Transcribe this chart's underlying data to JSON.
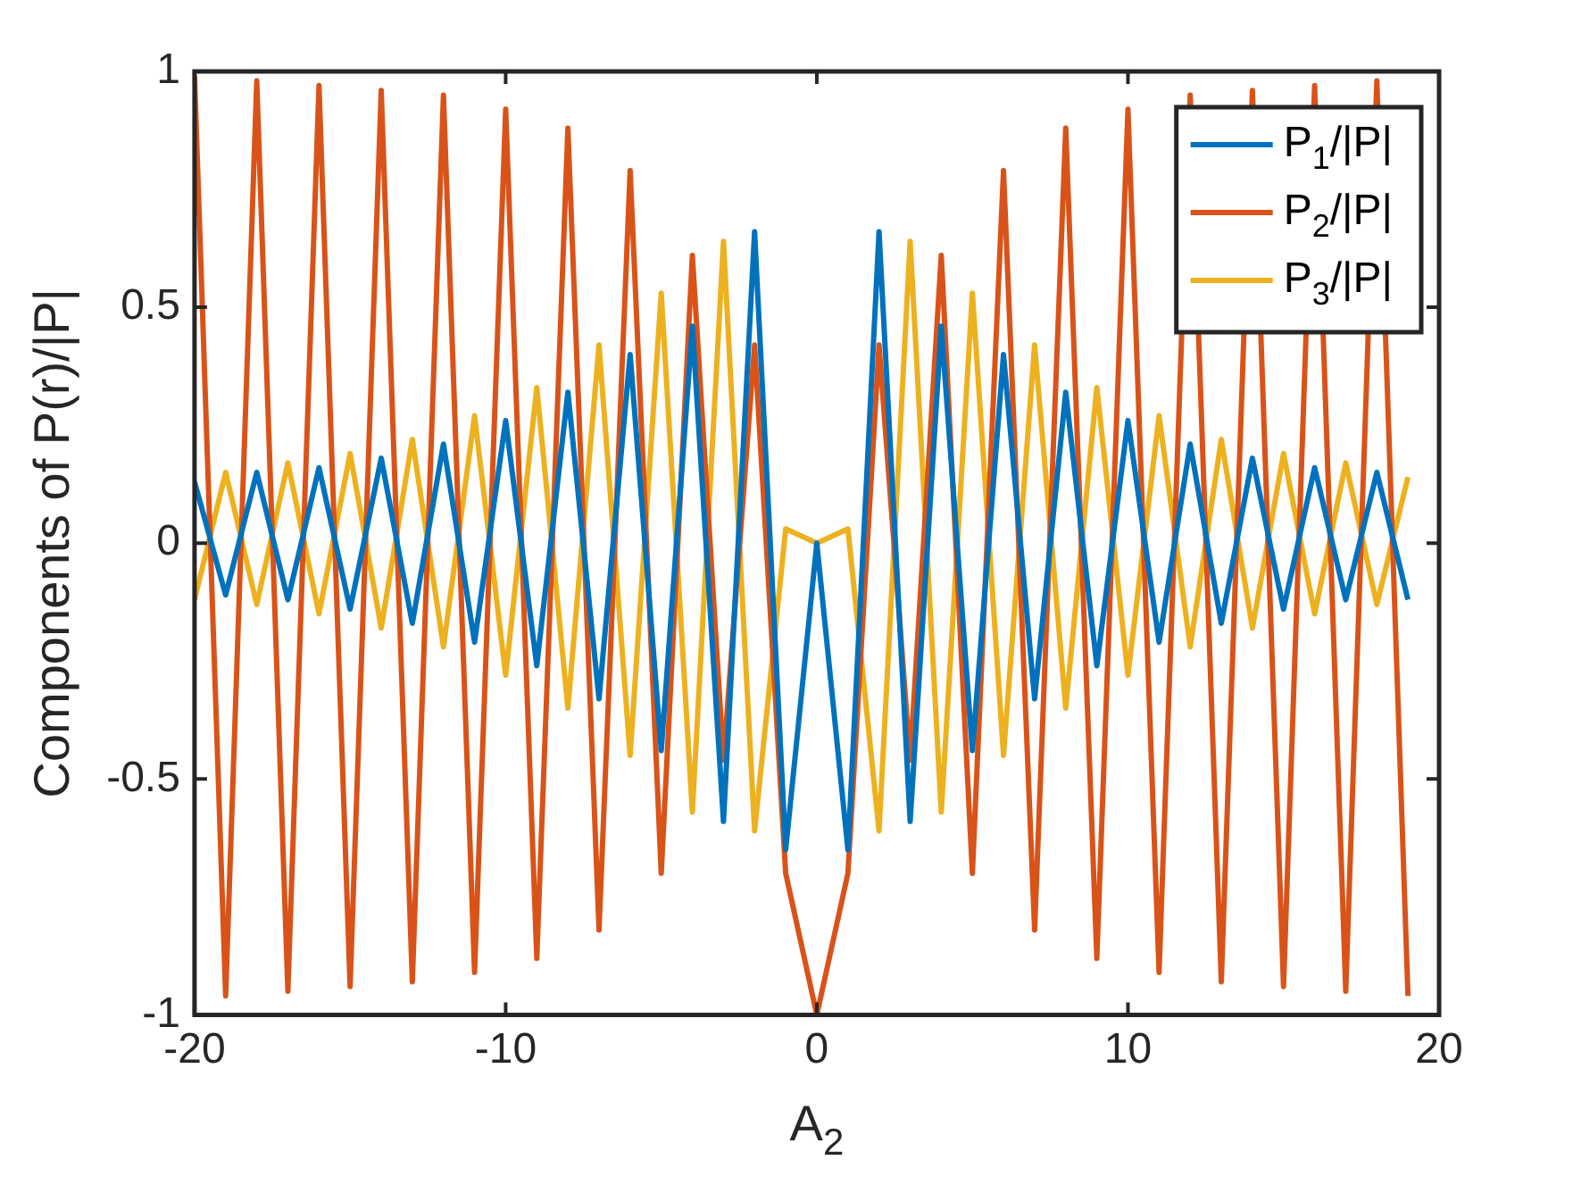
{
  "chart_data": {
    "type": "line",
    "xlabel": "A$_{2}$",
    "ylabel": "Components of P(r)/|P|",
    "x": [
      -20,
      -19,
      -18,
      -17,
      -16,
      -15,
      -14,
      -13,
      -12,
      -11,
      -10,
      -9,
      -8,
      -7,
      -6,
      -5,
      -4,
      -3,
      -2,
      -1,
      0,
      1,
      2,
      3,
      4,
      5,
      6,
      7,
      8,
      9,
      10,
      11,
      12,
      13,
      14,
      15,
      16,
      17,
      18,
      19
    ],
    "series": [
      {
        "name": "P$_{1}$/|P|",
        "color": "#0072bd",
        "values": [
          0.13,
          -0.11,
          0.15,
          -0.12,
          0.16,
          -0.14,
          0.18,
          -0.17,
          0.21,
          -0.21,
          0.26,
          -0.26,
          0.32,
          -0.33,
          0.4,
          -0.44,
          0.46,
          -0.59,
          0.66,
          -0.65,
          0,
          -0.65,
          0.66,
          -0.59,
          0.46,
          -0.44,
          0.4,
          -0.33,
          0.32,
          -0.26,
          0.26,
          -0.21,
          0.21,
          -0.17,
          0.18,
          -0.14,
          0.16,
          -0.12,
          0.15,
          -0.12
        ]
      },
      {
        "name": "P$_{2}$/|P|",
        "color": "#d95319",
        "values": [
          0.99,
          -0.96,
          0.98,
          -0.95,
          0.97,
          -0.94,
          0.96,
          -0.93,
          0.95,
          -0.91,
          0.92,
          -0.88,
          0.88,
          -0.82,
          0.79,
          -0.7,
          0.61,
          -0.46,
          0.42,
          -0.7,
          -1,
          -0.7,
          0.42,
          -0.46,
          0.61,
          -0.7,
          0.79,
          -0.82,
          0.88,
          -0.88,
          0.92,
          -0.91,
          0.95,
          -0.93,
          0.96,
          -0.94,
          0.97,
          -0.95,
          0.98,
          -0.96
        ]
      },
      {
        "name": "P$_{3}$/|P|",
        "color": "#edb120",
        "values": [
          -0.12,
          0.15,
          -0.13,
          0.17,
          -0.15,
          0.19,
          -0.18,
          0.22,
          -0.22,
          0.27,
          -0.28,
          0.33,
          -0.35,
          0.42,
          -0.45,
          0.53,
          -0.57,
          0.64,
          -0.61,
          0.03,
          0,
          0.03,
          -0.61,
          0.64,
          -0.57,
          0.53,
          -0.45,
          0.42,
          -0.35,
          0.33,
          -0.28,
          0.27,
          -0.22,
          0.22,
          -0.18,
          0.19,
          -0.15,
          0.17,
          -0.13,
          0.14
        ]
      }
    ],
    "xlim": [
      -20,
      20
    ],
    "xticks": [
      -20,
      -10,
      0,
      10,
      20
    ],
    "ylim": [
      -1,
      1
    ],
    "yticks": [
      -1,
      -0.5,
      0,
      0.5,
      1
    ],
    "grid": false,
    "legend": "top right",
    "marker": "none",
    "line_style": "solid"
  }
}
